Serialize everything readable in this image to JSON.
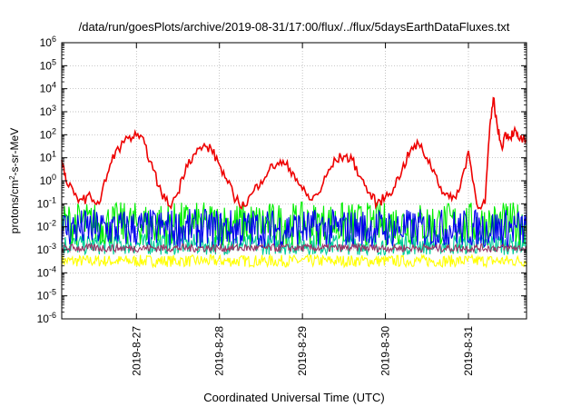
{
  "chart_data": {
    "type": "line",
    "title": "/data/run/goesPlots/archive/2019-08-31/17:00/flux/../flux/5daysEarthDataFluxes.txt",
    "xlabel": "Coordinated Universal Time (UTC)",
    "ylabel": "protons/cm2-s-sr-MeV",
    "y_scale": "log",
    "ylim": [
      1e-06,
      1000000.0
    ],
    "xlim": [
      0.0,
      5.6
    ],
    "x_ticks": [
      {
        "x": 0.9,
        "label": "2019-8-27"
      },
      {
        "x": 1.9,
        "label": "2019-8-28"
      },
      {
        "x": 2.9,
        "label": "2019-8-29"
      },
      {
        "x": 3.9,
        "label": "2019-8-30"
      },
      {
        "x": 4.9,
        "label": "2019-8-31"
      }
    ],
    "y_tick_exponents": [
      -6,
      -5,
      -4,
      -3,
      -2,
      -1,
      0,
      1,
      2,
      3,
      4,
      5,
      6
    ],
    "grid": true,
    "legend": "none",
    "series": [
      {
        "color": "#ffff00",
        "band": [
          0.00018,
          0.0006
        ],
        "x": [
          0.0,
          5.6
        ],
        "y": [
          0.0003,
          0.0003
        ]
      },
      {
        "color": "#00cc99",
        "band": [
          0.0006,
          0.005
        ],
        "x": [
          0.0,
          5.6
        ],
        "y": [
          0.0015,
          0.0015
        ]
      },
      {
        "color": "#00ee00",
        "band": [
          0.0015,
          0.12
        ],
        "x": [
          0.0,
          5.6
        ],
        "y": [
          0.02,
          0.02
        ]
      },
      {
        "color": "#0000ee",
        "band": [
          0.0012,
          0.06
        ],
        "x": [
          0.0,
          5.6
        ],
        "y": [
          0.008,
          0.008
        ]
      },
      {
        "color": "#993366",
        "band": [
          0.0008,
          0.0018
        ],
        "x": [
          0.0,
          5.6
        ],
        "y": [
          0.0012,
          0.0012
        ]
      },
      {
        "color": "#ee0000",
        "x": [
          0.0,
          0.05,
          0.15,
          0.25,
          0.35,
          0.45,
          0.55,
          0.65,
          0.8,
          0.9,
          1.0,
          1.1,
          1.2,
          1.3,
          1.4,
          1.5,
          1.6,
          1.7,
          1.8,
          1.9,
          2.0,
          2.1,
          2.2,
          2.3,
          2.4,
          2.5,
          2.6,
          2.7,
          2.8,
          2.9,
          3.0,
          3.1,
          3.2,
          3.3,
          3.4,
          3.5,
          3.6,
          3.7,
          3.8,
          3.9,
          4.0,
          4.1,
          4.2,
          4.3,
          4.4,
          4.5,
          4.6,
          4.7,
          4.8,
          4.9,
          5.0,
          5.1,
          5.15,
          5.2,
          5.25,
          5.3,
          5.35,
          5.4,
          5.45,
          5.5,
          5.6
        ],
        "y": [
          8,
          1.0,
          0.25,
          0.15,
          0.2,
          0.1,
          2.0,
          20,
          70,
          90,
          40,
          3.0,
          0.3,
          0.08,
          0.3,
          5.0,
          15,
          30,
          25,
          5.0,
          0.8,
          0.15,
          0.08,
          0.3,
          1.0,
          3.0,
          6.0,
          5.0,
          2.0,
          0.4,
          0.15,
          0.3,
          2.0,
          8.0,
          12,
          8.0,
          1.5,
          0.3,
          0.1,
          0.2,
          0.5,
          3.0,
          20,
          40,
          10,
          2.0,
          0.3,
          0.15,
          0.5,
          20,
          0.1,
          0.1,
          80,
          4000,
          200,
          30,
          120,
          80,
          150,
          70,
          60
        ]
      }
    ]
  }
}
